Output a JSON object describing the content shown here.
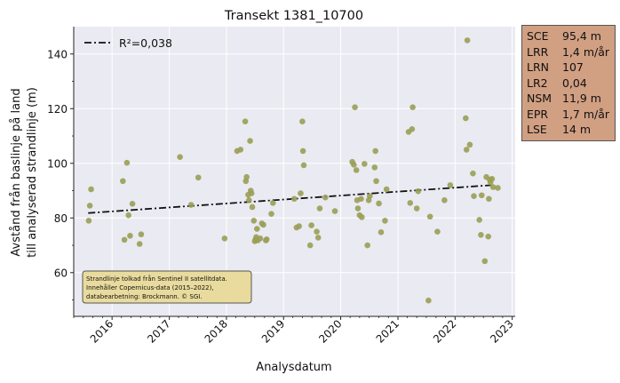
{
  "chart_data": {
    "type": "scatter",
    "title": "Transekt 1381_10700",
    "xlabel": "Analysdatum",
    "ylabel_line1": "Avstånd från baslinje på land",
    "ylabel_line2": "till analyserad strandlinje (m)",
    "xlim": [
      "2015-05-01",
      "2023-01-20"
    ],
    "ylim": [
      44,
      150
    ],
    "x_ticks": [
      "2016",
      "2017",
      "2018",
      "2019",
      "2020",
      "2021",
      "2022",
      "2023"
    ],
    "y_ticks": [
      60,
      80,
      100,
      120,
      140
    ],
    "grid": true,
    "legend": {
      "position": "top-left",
      "entries": [
        {
          "label": "R²=0,038",
          "style": "dash-dot",
          "color": "#111111"
        }
      ]
    },
    "trend": {
      "start": {
        "x": "2015-08-01",
        "y": 81.8
      },
      "end": {
        "x": "2022-08-20",
        "y": 92.0
      }
    },
    "point_color": "#9a9f55",
    "points": [
      {
        "x": "2015-08-05",
        "y": 79
      },
      {
        "x": "2015-08-12",
        "y": 84.5
      },
      {
        "x": "2015-08-20",
        "y": 90.5
      },
      {
        "x": "2016-03-10",
        "y": 93.5
      },
      {
        "x": "2016-03-20",
        "y": 72
      },
      {
        "x": "2016-04-05",
        "y": 100.2
      },
      {
        "x": "2016-04-15",
        "y": 81
      },
      {
        "x": "2016-04-25",
        "y": 73.5
      },
      {
        "x": "2016-05-10",
        "y": 85.2
      },
      {
        "x": "2016-06-25",
        "y": 70.5
      },
      {
        "x": "2016-07-05",
        "y": 74
      },
      {
        "x": "2017-03-10",
        "y": 102.3
      },
      {
        "x": "2017-05-20",
        "y": 84.8
      },
      {
        "x": "2017-07-05",
        "y": 94.8
      },
      {
        "x": "2017-12-20",
        "y": 72.5
      },
      {
        "x": "2018-03-10",
        "y": 104.5
      },
      {
        "x": "2018-04-01",
        "y": 105
      },
      {
        "x": "2018-05-01",
        "y": 115.3
      },
      {
        "x": "2018-05-05",
        "y": 93.5
      },
      {
        "x": "2018-05-10",
        "y": 95
      },
      {
        "x": "2018-05-20",
        "y": 88.5
      },
      {
        "x": "2018-05-25",
        "y": 86.5
      },
      {
        "x": "2018-06-01",
        "y": 108.2
      },
      {
        "x": "2018-06-05",
        "y": 90
      },
      {
        "x": "2018-06-10",
        "y": 89
      },
      {
        "x": "2018-06-15",
        "y": 84
      },
      {
        "x": "2018-06-25",
        "y": 79
      },
      {
        "x": "2018-07-01",
        "y": 71.5
      },
      {
        "x": "2018-07-05",
        "y": 72
      },
      {
        "x": "2018-07-10",
        "y": 73
      },
      {
        "x": "2018-07-15",
        "y": 76
      },
      {
        "x": "2018-07-20",
        "y": 71.8
      },
      {
        "x": "2018-08-05",
        "y": 72.5
      },
      {
        "x": "2018-08-15",
        "y": 78
      },
      {
        "x": "2018-08-25",
        "y": 77.5
      },
      {
        "x": "2018-09-10",
        "y": 71.8
      },
      {
        "x": "2018-09-15",
        "y": 72.2
      },
      {
        "x": "2018-10-15",
        "y": 81.5
      },
      {
        "x": "2018-10-25",
        "y": 85.5
      },
      {
        "x": "2019-03-10",
        "y": 87
      },
      {
        "x": "2019-03-25",
        "y": 76.5
      },
      {
        "x": "2019-04-10",
        "y": 77
      },
      {
        "x": "2019-04-20",
        "y": 89
      },
      {
        "x": "2019-05-01",
        "y": 115.3
      },
      {
        "x": "2019-05-05",
        "y": 104.5
      },
      {
        "x": "2019-05-10",
        "y": 99.3
      },
      {
        "x": "2019-06-20",
        "y": 70
      },
      {
        "x": "2019-06-28",
        "y": 77.3
      },
      {
        "x": "2019-08-01",
        "y": 75
      },
      {
        "x": "2019-08-10",
        "y": 72.8
      },
      {
        "x": "2019-08-20",
        "y": 83.5
      },
      {
        "x": "2019-09-25",
        "y": 87.5
      },
      {
        "x": "2019-11-25",
        "y": 82.5
      },
      {
        "x": "2020-03-15",
        "y": 100.5
      },
      {
        "x": "2020-03-25",
        "y": 99.5
      },
      {
        "x": "2020-04-01",
        "y": 120.5
      },
      {
        "x": "2020-04-10",
        "y": 97.5
      },
      {
        "x": "2020-04-15",
        "y": 86.5
      },
      {
        "x": "2020-04-20",
        "y": 83.5
      },
      {
        "x": "2020-05-01",
        "y": 81
      },
      {
        "x": "2020-05-10",
        "y": 87
      },
      {
        "x": "2020-05-15",
        "y": 80.3
      },
      {
        "x": "2020-06-01",
        "y": 99.8
      },
      {
        "x": "2020-06-20",
        "y": 70
      },
      {
        "x": "2020-06-28",
        "y": 86.5
      },
      {
        "x": "2020-07-05",
        "y": 88
      },
      {
        "x": "2020-08-05",
        "y": 98.5
      },
      {
        "x": "2020-08-10",
        "y": 104.5
      },
      {
        "x": "2020-08-15",
        "y": 93.5
      },
      {
        "x": "2020-09-01",
        "y": 85.3
      },
      {
        "x": "2020-09-15",
        "y": 74.8
      },
      {
        "x": "2020-10-10",
        "y": 79
      },
      {
        "x": "2020-10-20",
        "y": 90.5
      },
      {
        "x": "2021-03-10",
        "y": 111.5
      },
      {
        "x": "2021-03-20",
        "y": 85.5
      },
      {
        "x": "2021-04-01",
        "y": 112.5
      },
      {
        "x": "2021-04-05",
        "y": 120.5
      },
      {
        "x": "2021-05-01",
        "y": 83.5
      },
      {
        "x": "2021-05-10",
        "y": 89.8
      },
      {
        "x": "2021-07-15",
        "y": 49.8
      },
      {
        "x": "2021-07-25",
        "y": 80.5
      },
      {
        "x": "2021-09-10",
        "y": 75
      },
      {
        "x": "2021-10-25",
        "y": 86.5
      },
      {
        "x": "2021-12-01",
        "y": 92
      },
      {
        "x": "2022-03-10",
        "y": 116.5
      },
      {
        "x": "2022-03-15",
        "y": 105
      },
      {
        "x": "2022-03-20",
        "y": 145
      },
      {
        "x": "2022-04-05",
        "y": 106.8
      },
      {
        "x": "2022-04-25",
        "y": 96.3
      },
      {
        "x": "2022-05-01",
        "y": 88
      },
      {
        "x": "2022-06-05",
        "y": 79.3
      },
      {
        "x": "2022-06-15",
        "y": 73.8
      },
      {
        "x": "2022-06-20",
        "y": 88.3
      },
      {
        "x": "2022-07-10",
        "y": 64.2
      },
      {
        "x": "2022-07-20",
        "y": 95
      },
      {
        "x": "2022-08-01",
        "y": 73.2
      },
      {
        "x": "2022-08-05",
        "y": 87
      },
      {
        "x": "2022-08-10",
        "y": 94
      },
      {
        "x": "2022-08-15",
        "y": 93
      },
      {
        "x": "2022-08-25",
        "y": 94.3
      },
      {
        "x": "2022-09-01",
        "y": 91.3
      },
      {
        "x": "2022-10-01",
        "y": 91
      }
    ],
    "annotation_lines": [
      "Strandlinje tolkad från Sentinel II satellitdata.",
      "Innehåller Copernicus-data (2015–2022),",
      "databearbetning: Brockmann. © SGI."
    ],
    "annotation_bg": "#e9db9d"
  },
  "stats": [
    {
      "key": "SCE",
      "value": "95,4 m"
    },
    {
      "key": "LRR",
      "value": "1,4 m/år"
    },
    {
      "key": "LRN",
      "value": "107"
    },
    {
      "key": "LR2",
      "value": "0,04"
    },
    {
      "key": "NSM",
      "value": "11,9 m"
    },
    {
      "key": "EPR",
      "value": "1,7 m/år"
    },
    {
      "key": "LSE",
      "value": "14 m"
    }
  ]
}
